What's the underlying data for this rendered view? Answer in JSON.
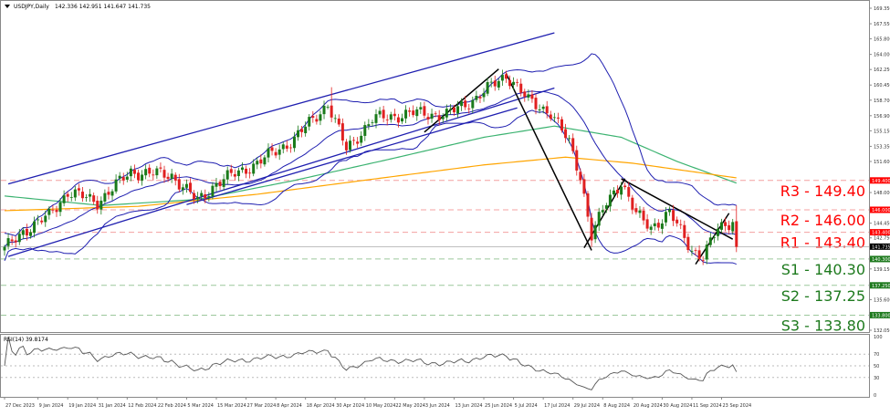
{
  "chart_data": {
    "type": "candlestick",
    "title": "USDJPY,Daily",
    "ohlc_readout": "142.336 142.951 141.647 141.735",
    "last_price": 141.735,
    "ylim": [
      132.05,
      169.35
    ],
    "y_ticks": [
      "169.350",
      "167.550",
      "165.800",
      "164.000",
      "162.250",
      "160.450",
      "158.700",
      "156.900",
      "155.150",
      "153.350",
      "151.600",
      "148.000",
      "144.450",
      "142.750",
      "139.150",
      "135.600",
      "132.050"
    ],
    "x_ticks": [
      "27 Dec 2023",
      "9 Jan 2024",
      "19 Jan 2024",
      "31 Jan 2024",
      "12 Feb 2024",
      "22 Feb 2024",
      "5 Mar 2024",
      "15 Mar 2024",
      "27 Mar 2024",
      "8 Apr 2024",
      "18 Apr 2024",
      "30 Apr 2024",
      "10 May 2024",
      "22 May 2024",
      "3 Jun 2024",
      "13 Jun 2024",
      "25 Jun 2024",
      "5 Jul 2024",
      "17 Jul 2024",
      "29 Jul 2024",
      "8 Aug 2024",
      "20 Aug 2024",
      "30 Aug 2024",
      "11 Sep 2024",
      "23 Sep 2024"
    ],
    "x_tick_dates": [
      "2023-12-27",
      "2024-01-09",
      "2024-01-19",
      "2024-01-31",
      "2024-02-12",
      "2024-02-22",
      "2024-03-05",
      "2024-03-15",
      "2024-03-27",
      "2024-04-08",
      "2024-04-18",
      "2024-04-30",
      "2024-05-10",
      "2024-05-22",
      "2024-06-03",
      "2024-06-13",
      "2024-06-25",
      "2024-07-05",
      "2024-07-17",
      "2024-07-29",
      "2024-08-08",
      "2024-08-20",
      "2024-08-30",
      "2024-09-11",
      "2024-09-23"
    ],
    "close_path": [
      [
        "2023-12-27",
        141.4
      ],
      [
        "2024-01-03",
        143.5
      ],
      [
        "2024-01-12",
        145.3
      ],
      [
        "2024-01-19",
        148.1
      ],
      [
        "2024-01-31",
        146.9
      ],
      [
        "2024-02-13",
        150.4
      ],
      [
        "2024-02-28",
        150.0
      ],
      [
        "2024-03-08",
        147.0
      ],
      [
        "2024-03-15",
        149.1
      ],
      [
        "2024-04-01",
        151.4
      ],
      [
        "2024-04-15",
        154.2
      ],
      [
        "2024-04-26",
        158.3
      ],
      [
        "2024-05-03",
        153.0
      ],
      [
        "2024-05-14",
        156.5
      ],
      [
        "2024-05-29",
        157.2
      ],
      [
        "2024-06-11",
        157.0
      ],
      [
        "2024-06-21",
        159.0
      ],
      [
        "2024-07-03",
        161.6
      ],
      [
        "2024-07-05",
        160.8
      ],
      [
        "2024-07-11",
        158.6
      ],
      [
        "2024-07-19",
        157.3
      ],
      [
        "2024-07-26",
        153.7
      ],
      [
        "2024-07-31",
        150.0
      ],
      [
        "2024-08-05",
        143.0
      ],
      [
        "2024-08-09",
        146.8
      ],
      [
        "2024-08-15",
        149.3
      ],
      [
        "2024-08-21",
        145.4
      ],
      [
        "2024-08-27",
        144.0
      ],
      [
        "2024-09-03",
        145.6
      ],
      [
        "2024-09-11",
        141.4
      ],
      [
        "2024-09-16",
        140.5
      ],
      [
        "2024-09-20",
        143.8
      ],
      [
        "2024-09-26",
        144.8
      ],
      [
        "2024-09-27",
        141.7
      ]
    ],
    "ma_green": [
      [
        "2023-12-27",
        147.6
      ],
      [
        "2024-02-01",
        146.5
      ],
      [
        "2024-03-08",
        147.2
      ],
      [
        "2024-04-15",
        149.4
      ],
      [
        "2024-05-20",
        151.8
      ],
      [
        "2024-06-25",
        154.4
      ],
      [
        "2024-07-20",
        155.7
      ],
      [
        "2024-08-15",
        154.4
      ],
      [
        "2024-09-05",
        151.6
      ],
      [
        "2024-09-27",
        149.1
      ]
    ],
    "ma_orange": [
      [
        "2023-12-27",
        145.9
      ],
      [
        "2024-02-15",
        146.4
      ],
      [
        "2024-04-01",
        147.8
      ],
      [
        "2024-05-15",
        149.6
      ],
      [
        "2024-06-25",
        151.2
      ],
      [
        "2024-07-25",
        152.1
      ],
      [
        "2024-08-20",
        151.4
      ],
      [
        "2024-09-27",
        149.7
      ]
    ],
    "channel_lines": [
      [
        [
          "2023-12-28",
          149.0
        ],
        [
          "2024-07-22",
          166.5
        ]
      ],
      [
        [
          "2023-12-28",
          140.6
        ],
        [
          "2024-07-22",
          160.1
        ]
      ],
      [
        [
          "2024-03-05",
          146.6
        ],
        [
          "2024-07-08",
          157.8
        ]
      ]
    ],
    "trend_lines": [
      [
        [
          "2024-06-03",
          155.0
        ],
        [
          "2024-07-01",
          162.3
        ]
      ],
      [
        [
          "2024-07-03",
          161.8
        ],
        [
          "2024-08-05",
          141.3
        ]
      ],
      [
        [
          "2024-08-01",
          141.6
        ],
        [
          "2024-08-16",
          149.6
        ]
      ],
      [
        [
          "2024-08-15",
          149.6
        ],
        [
          "2024-09-26",
          142.6
        ]
      ],
      [
        [
          "2024-09-12",
          139.7
        ],
        [
          "2024-09-25",
          145.6
        ]
      ]
    ],
    "levels": [
      {
        "label": "R3 - 149.40",
        "value": 149.4,
        "tag": "149.400",
        "color": "#ff0000",
        "kind": "resistance"
      },
      {
        "label": "R2 - 146.00",
        "value": 146.0,
        "tag": "146.000",
        "color": "#ff0000",
        "kind": "resistance"
      },
      {
        "label": "R1 - 143.40",
        "value": 143.4,
        "tag": "143.400",
        "color": "#ff0000",
        "kind": "resistance"
      },
      {
        "label": "S1 - 140.30",
        "value": 140.3,
        "tag": "140.300",
        "color": "#1e7a1e",
        "kind": "support"
      },
      {
        "label": "S2 - 137.25",
        "value": 137.25,
        "tag": "137.250",
        "color": "#1e7a1e",
        "kind": "support"
      },
      {
        "label": "S3 - 133.80",
        "value": 133.8,
        "tag": "133.800",
        "color": "#1e7a1e",
        "kind": "support"
      }
    ],
    "rsi": {
      "label": "RSI(14) 39.8174",
      "ylim": [
        0,
        100
      ],
      "ticks": [
        "100",
        "70",
        "50",
        "30",
        "0"
      ],
      "levels": [
        70,
        50,
        30
      ]
    },
    "colors": {
      "up": "#1a7a1a",
      "down": "#e02020",
      "bands": "#1f1fb0",
      "ma_green": "#3cb371",
      "ma_orange": "#ffa500",
      "trend": "#000000",
      "rsi": "#555555"
    }
  }
}
